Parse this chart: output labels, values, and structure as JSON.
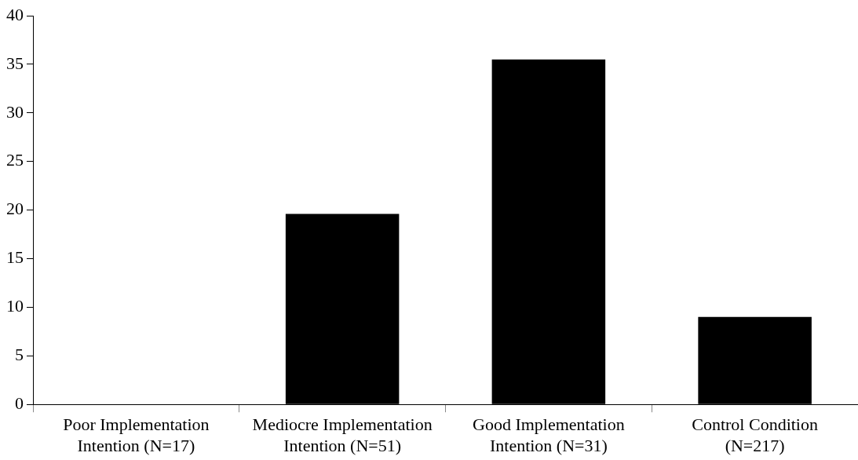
{
  "chart_data": {
    "type": "bar",
    "categories": [
      "Poor Implementation Intention (N=17)",
      "Mediocre Implementation Intention (N=51)",
      "Good Implementation Intention (N=31)",
      "Control Condition (N=217)"
    ],
    "values": [
      0,
      19.6,
      35.5,
      9.0
    ],
    "color": "#000000",
    "ylim": [
      0,
      40
    ],
    "yticks": [
      0,
      5,
      10,
      15,
      20,
      25,
      30,
      35,
      40
    ],
    "grid": false,
    "legend": false
  }
}
